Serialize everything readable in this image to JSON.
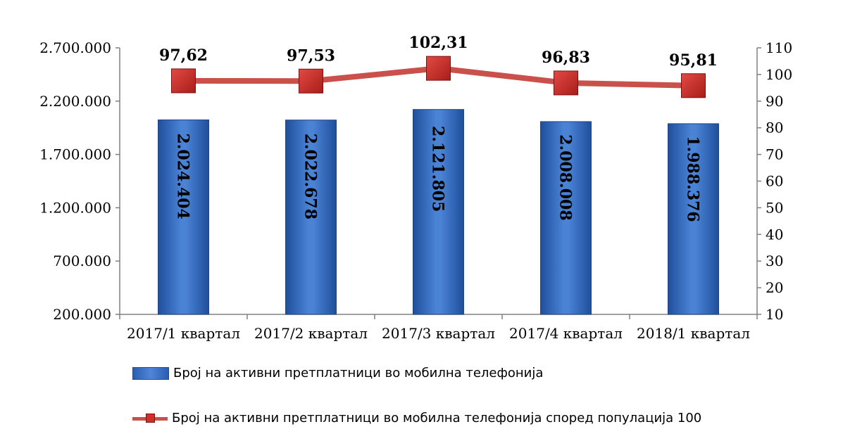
{
  "chart_data": {
    "type": "bar",
    "categories": [
      "2017/1 квартал",
      "2017/2 квартал",
      "2017/3 квартал",
      "2017/4 квартал",
      "2018/1 квартал"
    ],
    "series": [
      {
        "name": "Број на активни претплатници во мобилна телефонија",
        "type": "bar",
        "axis": "left",
        "values": [
          2024404,
          2022678,
          2121805,
          2008008,
          1988376
        ],
        "labels": [
          "2.024.404",
          "2.022.678",
          "2.121.805",
          "2.008.008",
          "1.988.376"
        ],
        "color": "#2f65b8"
      },
      {
        "name": "Број на активни претплатници во мобилна телефонија според популација 100",
        "type": "line",
        "axis": "right",
        "values": [
          97.62,
          97.53,
          102.31,
          96.83,
          95.81
        ],
        "labels": [
          "97,62",
          "97,53",
          "102,31",
          "96,83",
          "95,81"
        ],
        "color": "#c9504b"
      }
    ],
    "y_left": {
      "ylim": [
        200000,
        2700000
      ],
      "ticks": [
        200000,
        700000,
        1200000,
        1700000,
        2200000,
        2700000
      ],
      "tick_labels": [
        "200.000",
        "700.000",
        "1.200.000",
        "1.700.000",
        "2.200.000",
        "2.700.000"
      ]
    },
    "y_right": {
      "ylim": [
        10,
        110
      ],
      "ticks": [
        10,
        20,
        30,
        40,
        50,
        60,
        70,
        80,
        90,
        100,
        110
      ],
      "tick_labels": [
        "10",
        "20",
        "30",
        "40",
        "50",
        "60",
        "70",
        "80",
        "90",
        "100",
        "110"
      ]
    },
    "grid": false,
    "legend_position": "bottom"
  }
}
